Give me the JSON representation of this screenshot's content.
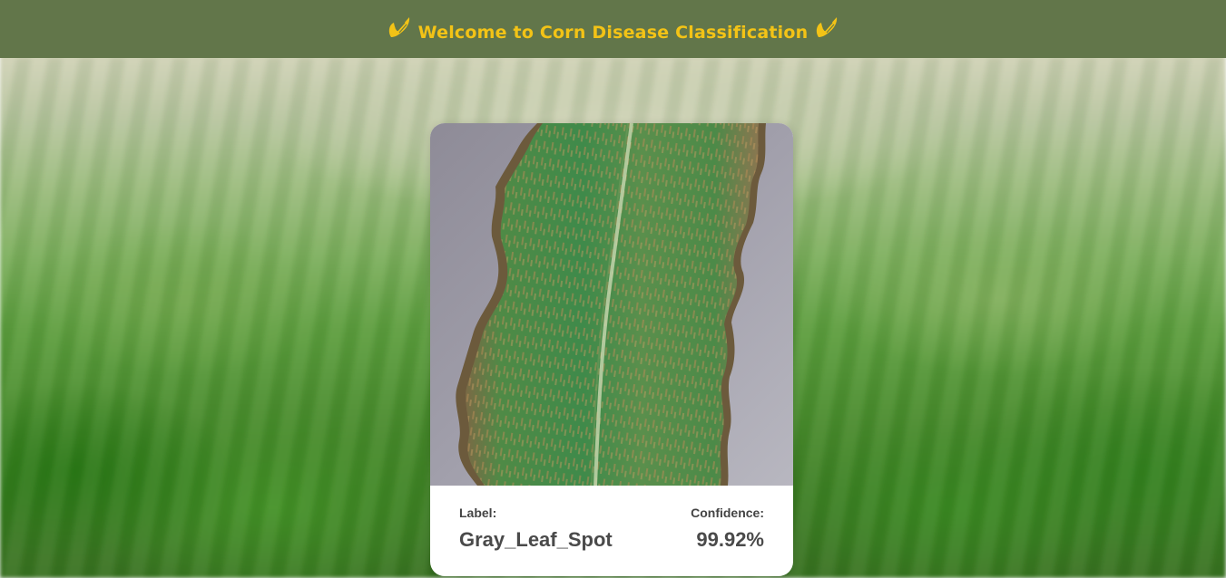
{
  "header": {
    "title": "Welcome to Corn Disease Classification",
    "left_icon": "corn-icon",
    "right_icon": "corn-icon",
    "background_color": "#62764a",
    "title_color": "#f3c316"
  },
  "background": {
    "icon": "cornfield-background"
  },
  "prediction": {
    "image": "corn-leaf-photo",
    "label_caption": "Label:",
    "label_value": "Gray_Leaf_Spot",
    "confidence_caption": "Confidence:",
    "confidence_value": "99.92%"
  }
}
